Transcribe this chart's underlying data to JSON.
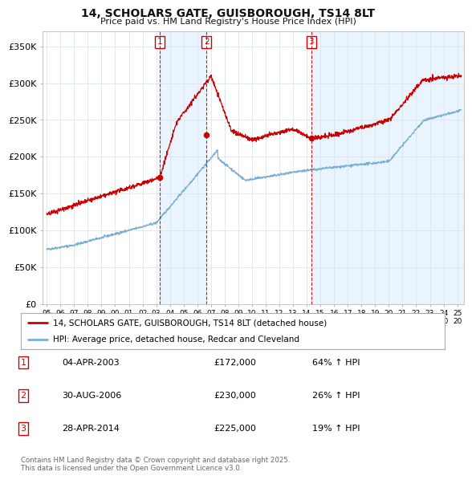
{
  "title": "14, SCHOLARS GATE, GUISBOROUGH, TS14 8LT",
  "subtitle": "Price paid vs. HM Land Registry's House Price Index (HPI)",
  "ylabel_ticks": [
    "£0",
    "£50K",
    "£100K",
    "£150K",
    "£200K",
    "£250K",
    "£300K",
    "£350K"
  ],
  "ytick_vals": [
    0,
    50000,
    100000,
    150000,
    200000,
    250000,
    300000,
    350000
  ],
  "ylim": [
    0,
    370000
  ],
  "xlim_start": 1994.7,
  "xlim_end": 2025.5,
  "vline_dates": [
    2003.25,
    2006.67,
    2014.33
  ],
  "vline_labels": [
    "1",
    "2",
    "3"
  ],
  "sale_dates": [
    2003.25,
    2006.67,
    2014.33
  ],
  "sale_prices": [
    172000,
    230000,
    225000
  ],
  "property_color": "#cc0000",
  "hpi_color": "#7ab0d4",
  "hpi_fill_color": "#ddeeff",
  "legend_property": "14, SCHOLARS GATE, GUISBOROUGH, TS14 8LT (detached house)",
  "legend_hpi": "HPI: Average price, detached house, Redcar and Cleveland",
  "table_rows": [
    [
      "1",
      "04-APR-2003",
      "£172,000",
      "64% ↑ HPI"
    ],
    [
      "2",
      "30-AUG-2006",
      "£230,000",
      "26% ↑ HPI"
    ],
    [
      "3",
      "28-APR-2014",
      "£225,000",
      "19% ↑ HPI"
    ]
  ],
  "footer": "Contains HM Land Registry data © Crown copyright and database right 2025.\nThis data is licensed under the Open Government Licence v3.0.",
  "background_color": "#ffffff",
  "grid_color": "#d8e4f0"
}
